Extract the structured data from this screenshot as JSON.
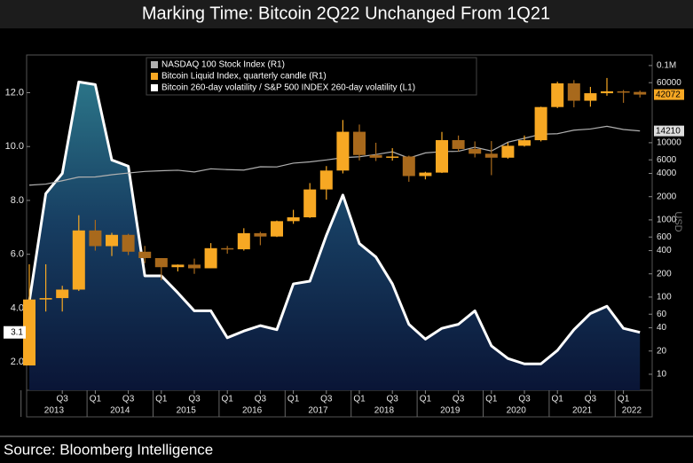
{
  "chart_data": {
    "type": "combo",
    "title": "Marking Time: Bitcoin 2Q22 Unchanged From 1Q21",
    "source": "Source: Bloomberg Intelligence",
    "y2label": "USD",
    "categories": [
      null,
      null,
      "Q3",
      null,
      "Q1",
      null,
      "Q3",
      null,
      "Q1",
      null,
      "Q3",
      null,
      "Q1",
      null,
      "Q3",
      null,
      "Q1",
      null,
      "Q3",
      null,
      "Q1",
      null,
      "Q3",
      null,
      "Q1",
      null,
      "Q3",
      null,
      "Q1",
      null,
      "Q3",
      null,
      "Q1",
      null,
      "Q3",
      null,
      "Q1",
      null
    ],
    "years": [
      "2013",
      "2014",
      "2015",
      "2016",
      "2017",
      "2018",
      "2019",
      "2020",
      "2021",
      "2022"
    ],
    "ylim": [
      0.95,
      13.4
    ],
    "yticks": [
      {
        "value": 2,
        "label": "2.0"
      },
      {
        "value": 4,
        "label": "4.0"
      },
      {
        "value": 6,
        "label": "6.0"
      },
      {
        "value": 8,
        "label": "8.0"
      },
      {
        "value": 10,
        "label": "10.0"
      },
      {
        "value": 12,
        "label": "12.0"
      }
    ],
    "y2lim": [
      6.2,
      137000
    ],
    "y2log": true,
    "y2ticks": [
      10,
      20,
      40,
      60,
      100,
      200,
      400,
      600,
      1000,
      2000,
      4000,
      6000,
      10000,
      60000,
      {
        "value": 100000,
        "label": "0.1M"
      }
    ],
    "grid": false,
    "legend": "top-left",
    "series": [
      {
        "name": "Bitcoin 260-day volatility / S&P 500 INDEX 260-day volatility (L1)",
        "type": "area",
        "color": "#ffffff",
        "values": [
          4.24,
          8.25,
          9.0,
          12.4,
          12.3,
          9.5,
          9.27,
          5.2,
          5.2,
          4.57,
          3.9,
          3.9,
          2.9,
          3.15,
          3.35,
          3.2,
          4.9,
          5.0,
          6.7,
          8.2,
          6.4,
          5.9,
          4.9,
          3.4,
          2.85,
          3.25,
          3.4,
          3.9,
          2.6,
          2.13,
          1.93,
          1.93,
          2.43,
          3.2,
          3.8,
          4.07,
          3.25,
          3.1
        ]
      },
      {
        "name": "NASDAQ 100 Stock Index (R1)",
        "type": "line",
        "axis": "y2",
        "color": "#b0b0b0",
        "values": [
          2820,
          2910,
          3220,
          3590,
          3600,
          3850,
          4050,
          4240,
          4330,
          4400,
          4180,
          4590,
          4480,
          4420,
          4880,
          4860,
          5440,
          5650,
          5980,
          6400,
          6580,
          7040,
          7630,
          6330,
          7380,
          7670,
          7750,
          8730,
          7810,
          10160,
          11420,
          12890,
          13090,
          14550,
          15050,
          16320,
          14840,
          14210
        ]
      },
      {
        "name": "Bitcoin Liquid Index, quarterly candle (R1)",
        "type": "candlestick",
        "axis": "y2",
        "color": "#f7a823",
        "down_color": "#a8691c",
        "open": [
          13,
          93,
          97,
          125,
          730,
          457,
          640,
          387,
          320,
          244,
          263,
          236,
          430,
          416,
          673,
          609,
          963,
          1080,
          2480,
          4360,
          13860,
          6930,
          6390,
          6630,
          3700,
          4100,
          10800,
          8300,
          7200,
          6400,
          9130,
          10780,
          28990,
          58800,
          35000,
          43800,
          46300,
          45500
        ],
        "high": [
          266,
          266,
          140,
          1150,
          1000,
          680,
          660,
          460,
          320,
          265,
          315,
          500,
          460,
          780,
          700,
          980,
          1350,
          3000,
          4980,
          19700,
          17200,
          9990,
          8500,
          6800,
          4200,
          13800,
          12400,
          10400,
          10500,
          10000,
          12400,
          29300,
          61800,
          64800,
          52900,
          69000,
          48200,
          47400
        ],
        "low": [
          13,
          65,
          65,
          120,
          400,
          340,
          350,
          275,
          165,
          215,
          200,
          236,
          365,
          400,
          470,
          600,
          890,
          1060,
          1830,
          4000,
          5900,
          5800,
          5860,
          3120,
          3350,
          4050,
          7700,
          6450,
          3800,
          6200,
          8900,
          10400,
          28100,
          28800,
          29300,
          40600,
          32900,
          38500
        ],
        "close": [
          93,
          97,
          125,
          730,
          457,
          640,
          387,
          320,
          244,
          263,
          236,
          430,
          416,
          673,
          609,
          963,
          1080,
          2480,
          4360,
          13860,
          6930,
          6390,
          6630,
          3700,
          4100,
          10800,
          8300,
          7200,
          6400,
          9130,
          10780,
          28990,
          58800,
          35000,
          43800,
          46300,
          45500,
          42072
        ]
      }
    ]
  }
}
